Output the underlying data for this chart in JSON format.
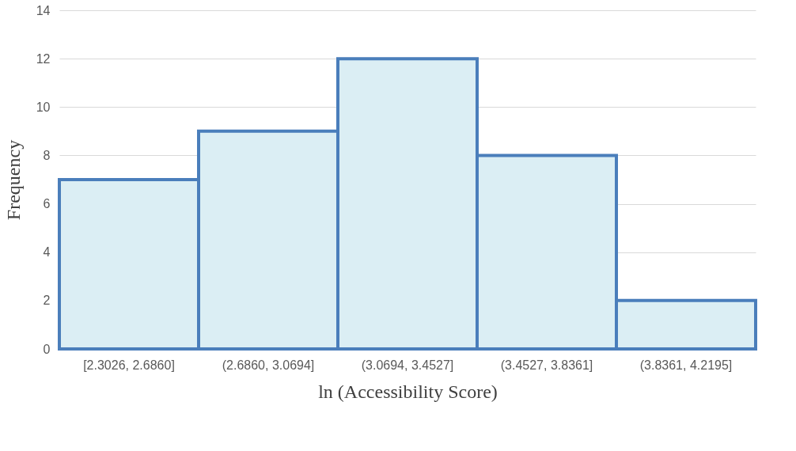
{
  "chart_data": {
    "type": "bar",
    "xlabel": "ln (Accessibility Score)",
    "ylabel": "Frequency",
    "categories": [
      "[2.3026, 2.6860]",
      "(2.6860, 3.0694]",
      "(3.0694, 3.4527]",
      "(3.4527, 3.8361]",
      "(3.8361, 4.2195]"
    ],
    "values": [
      7,
      9,
      12,
      8,
      2
    ],
    "color": "#dbeef4",
    "ylim": [
      0,
      14
    ],
    "yticks": [
      0,
      2,
      4,
      6,
      8,
      10,
      12,
      14
    ],
    "grid": "y"
  }
}
